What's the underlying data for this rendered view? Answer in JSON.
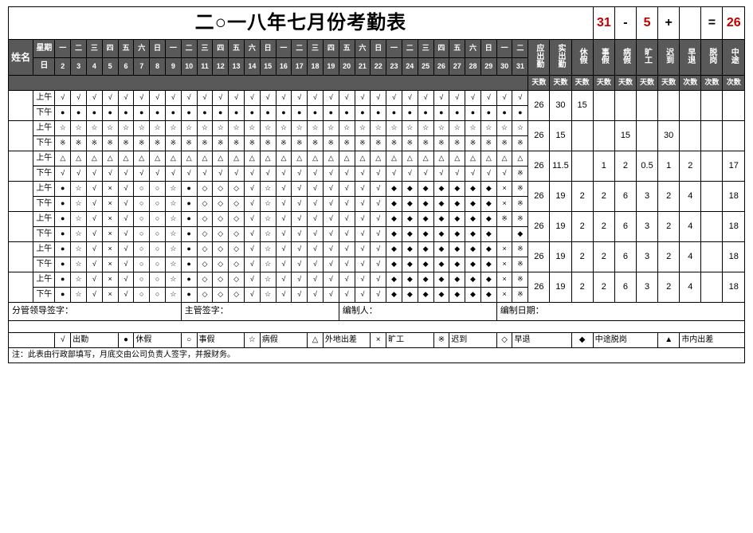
{
  "colors": {
    "header_bg": "#595959",
    "header_fg": "#ffffff",
    "accent_red": "#c00000",
    "border": "#000000",
    "bg": "#ffffff"
  },
  "title": "二○一八年七月份考勤表",
  "calc": {
    "a": "31",
    "op1": "-",
    "b": "5",
    "op2": "+",
    "c": "",
    "eq": "=",
    "r": "26"
  },
  "corner": "姓名",
  "weekday_label": "星期",
  "date_label": "日",
  "weekdays": [
    "一",
    "二",
    "三",
    "四",
    "五",
    "六",
    "日",
    "一",
    "二",
    "三",
    "四",
    "五",
    "六",
    "日",
    "一",
    "二",
    "三",
    "四",
    "五",
    "六",
    "日",
    "一",
    "二",
    "三",
    "四",
    "五",
    "六",
    "日",
    "一",
    "二"
  ],
  "dates": [
    "2",
    "3",
    "4",
    "5",
    "6",
    "7",
    "8",
    "9",
    "10",
    "11",
    "12",
    "13",
    "14",
    "15",
    "16",
    "17",
    "18",
    "19",
    "20",
    "21",
    "22",
    "23",
    "24",
    "25",
    "26",
    "27",
    "28",
    "29",
    "30",
    "31"
  ],
  "summary_headers": [
    "应出勤",
    "实出勤",
    "休假",
    "事假",
    "病假",
    "旷工",
    "迟到",
    "早退",
    "脱岗",
    "中途"
  ],
  "summary_units": [
    "天数",
    "天数",
    "天数",
    "天数",
    "天数",
    "天数",
    "天数",
    "次数",
    "次数",
    "次数"
  ],
  "sessions": [
    "上午",
    "下午"
  ],
  "employees": [
    {
      "am": [
        "√",
        "√",
        "√",
        "√",
        "√",
        "√",
        "√",
        "√",
        "√",
        "√",
        "√",
        "√",
        "√",
        "√",
        "√",
        "√",
        "√",
        "√",
        "√",
        "√",
        "√",
        "√",
        "√",
        "√",
        "√",
        "√",
        "√",
        "√",
        "√",
        "√"
      ],
      "pm": [
        "●",
        "●",
        "●",
        "●",
        "●",
        "●",
        "●",
        "●",
        "●",
        "●",
        "●",
        "●",
        "●",
        "●",
        "●",
        "●",
        "●",
        "●",
        "●",
        "●",
        "●",
        "●",
        "●",
        "●",
        "●",
        "●",
        "●",
        "●",
        "●",
        "●"
      ],
      "sum": [
        "26",
        "30",
        "15",
        "",
        "",
        "",
        "",
        "",
        "",
        ""
      ]
    },
    {
      "am": [
        "☆",
        "☆",
        "☆",
        "☆",
        "☆",
        "☆",
        "☆",
        "☆",
        "☆",
        "☆",
        "☆",
        "☆",
        "☆",
        "☆",
        "☆",
        "☆",
        "☆",
        "☆",
        "☆",
        "☆",
        "☆",
        "☆",
        "☆",
        "☆",
        "☆",
        "☆",
        "☆",
        "☆",
        "☆",
        "☆"
      ],
      "pm": [
        "※",
        "※",
        "※",
        "※",
        "※",
        "※",
        "※",
        "※",
        "※",
        "※",
        "※",
        "※",
        "※",
        "※",
        "※",
        "※",
        "※",
        "※",
        "※",
        "※",
        "※",
        "※",
        "※",
        "※",
        "※",
        "※",
        "※",
        "※",
        "※",
        "※"
      ],
      "sum": [
        "26",
        "15",
        "",
        "",
        "15",
        "",
        "30",
        "",
        "",
        ""
      ]
    },
    {
      "am": [
        "△",
        "△",
        "△",
        "△",
        "△",
        "△",
        "△",
        "△",
        "△",
        "△",
        "△",
        "△",
        "△",
        "△",
        "△",
        "△",
        "△",
        "△",
        "△",
        "△",
        "△",
        "△",
        "△",
        "△",
        "△",
        "△",
        "△",
        "△",
        "△",
        "△"
      ],
      "pm": [
        "√",
        "√",
        "√",
        "√",
        "√",
        "√",
        "√",
        "√",
        "√",
        "√",
        "√",
        "√",
        "√",
        "√",
        "√",
        "√",
        "√",
        "√",
        "√",
        "√",
        "√",
        "√",
        "√",
        "√",
        "√",
        "√",
        "√",
        "√",
        "√",
        "※"
      ],
      "sum": [
        "26",
        "11.5",
        "",
        "1",
        "2",
        "0.5",
        "1",
        "2",
        "",
        "17"
      ]
    },
    {
      "am": [
        "●",
        "☆",
        "√",
        "×",
        "√",
        "○",
        "○",
        "☆",
        "●",
        "◇",
        "◇",
        "◇",
        "√",
        "☆",
        "√",
        "√",
        "√",
        "√",
        "√",
        "√",
        "√",
        "◆",
        "◆",
        "◆",
        "◆",
        "◆",
        "◆",
        "◆",
        "×",
        "※"
      ],
      "pm": [
        "●",
        "☆",
        "√",
        "×",
        "√",
        "○",
        "○",
        "☆",
        "●",
        "◇",
        "◇",
        "◇",
        "√",
        "☆",
        "√",
        "√",
        "√",
        "√",
        "√",
        "√",
        "√",
        "◆",
        "◆",
        "◆",
        "◆",
        "◆",
        "◆",
        "◆",
        "×",
        "※"
      ],
      "sum": [
        "26",
        "19",
        "2",
        "2",
        "6",
        "3",
        "2",
        "4",
        "",
        "18"
      ]
    },
    {
      "am": [
        "●",
        "☆",
        "√",
        "×",
        "√",
        "○",
        "○",
        "☆",
        "●",
        "◇",
        "◇",
        "◇",
        "√",
        "☆",
        "√",
        "√",
        "√",
        "√",
        "√",
        "√",
        "√",
        "◆",
        "◆",
        "◆",
        "◆",
        "◆",
        "◆",
        "◆",
        "※",
        "※"
      ],
      "pm": [
        "●",
        "☆",
        "√",
        "×",
        "√",
        "○",
        "○",
        "☆",
        "●",
        "◇",
        "◇",
        "◇",
        "√",
        "☆",
        "√",
        "√",
        "√",
        "√",
        "√",
        "√",
        "√",
        "◆",
        "◆",
        "◆",
        "◆",
        "◆",
        "◆",
        "◆",
        "",
        "◆"
      ],
      "sum": [
        "26",
        "19",
        "2",
        "2",
        "6",
        "3",
        "2",
        "4",
        "",
        "18"
      ]
    },
    {
      "am": [
        "●",
        "☆",
        "√",
        "×",
        "√",
        "○",
        "○",
        "☆",
        "●",
        "◇",
        "◇",
        "◇",
        "√",
        "☆",
        "√",
        "√",
        "√",
        "√",
        "√",
        "√",
        "√",
        "◆",
        "◆",
        "◆",
        "◆",
        "◆",
        "◆",
        "◆",
        "×",
        "※"
      ],
      "pm": [
        "●",
        "☆",
        "√",
        "×",
        "√",
        "○",
        "○",
        "☆",
        "●",
        "◇",
        "◇",
        "◇",
        "√",
        "☆",
        "√",
        "√",
        "√",
        "√",
        "√",
        "√",
        "√",
        "◆",
        "◆",
        "◆",
        "◆",
        "◆",
        "◆",
        "◆",
        "×",
        "※"
      ],
      "sum": [
        "26",
        "19",
        "2",
        "2",
        "6",
        "3",
        "2",
        "4",
        "",
        "18"
      ]
    },
    {
      "am": [
        "●",
        "☆",
        "√",
        "×",
        "√",
        "○",
        "○",
        "☆",
        "●",
        "◇",
        "◇",
        "◇",
        "√",
        "☆",
        "√",
        "√",
        "√",
        "√",
        "√",
        "√",
        "√",
        "◆",
        "◆",
        "◆",
        "◆",
        "◆",
        "◆",
        "◆",
        "×",
        "※"
      ],
      "pm": [
        "●",
        "☆",
        "√",
        "×",
        "√",
        "○",
        "○",
        "☆",
        "●",
        "◇",
        "◇",
        "◇",
        "√",
        "☆",
        "√",
        "√",
        "√",
        "√",
        "√",
        "√",
        "√",
        "◆",
        "◆",
        "◆",
        "◆",
        "◆",
        "◆",
        "◆",
        "×",
        "※"
      ],
      "sum": [
        "26",
        "19",
        "2",
        "2",
        "6",
        "3",
        "2",
        "4",
        "",
        "18"
      ]
    }
  ],
  "signatures": {
    "s1": "分管领导签字：",
    "s2": "主管签字：",
    "s3": "编制人：",
    "s4": "编制日期："
  },
  "legend": [
    {
      "sym": "√",
      "txt": "出勤"
    },
    {
      "sym": "●",
      "txt": "休假"
    },
    {
      "sym": "○",
      "txt": "事假"
    },
    {
      "sym": "☆",
      "txt": "病假"
    },
    {
      "sym": "△",
      "txt": "外地出差"
    },
    {
      "sym": "×",
      "txt": "旷工"
    },
    {
      "sym": "※",
      "txt": "迟到"
    },
    {
      "sym": "◇",
      "txt": "早退"
    },
    {
      "sym": "◆",
      "txt": "中途脱岗"
    },
    {
      "sym": "▲",
      "txt": "市内出差"
    }
  ],
  "note": "注：此表由行政部填写，月底交由公司负责人签字，并报财务。"
}
